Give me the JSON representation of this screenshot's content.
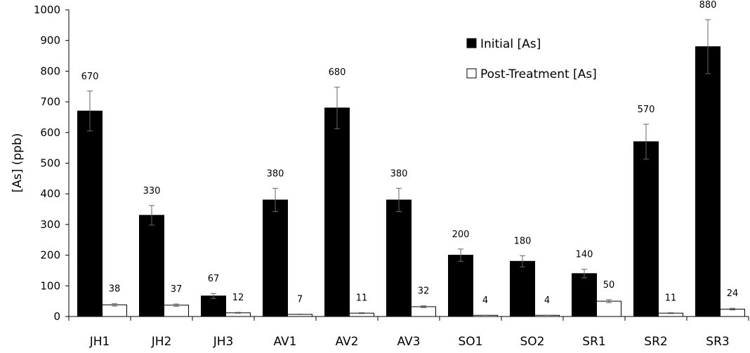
{
  "chart_data": {
    "type": "bar",
    "categories": [
      "JH1",
      "JH2",
      "JH3",
      "AV1",
      "AV2",
      "AV3",
      "SO1",
      "SO2",
      "SR1",
      "SR2",
      "SR3"
    ],
    "series": [
      {
        "name": "Initial [As]",
        "values": [
          670,
          330,
          67,
          380,
          680,
          380,
          200,
          180,
          140,
          570,
          880
        ],
        "errors": [
          65,
          32,
          8,
          38,
          68,
          38,
          20,
          18,
          14,
          57,
          88
        ],
        "labels": [
          "670",
          "330",
          "67",
          "380",
          "680",
          "380",
          "200",
          "180",
          "140",
          "570",
          "880"
        ],
        "color": "#000000"
      },
      {
        "name": "Post-Treatment [As]",
        "values": [
          38,
          37,
          12,
          7,
          11,
          32,
          4,
          4,
          50,
          11,
          24
        ],
        "errors": [
          4,
          4,
          1.5,
          1,
          1.5,
          3,
          0.5,
          0.5,
          5,
          1.5,
          3
        ],
        "labels": [
          "38",
          "37",
          "12",
          "7",
          "11",
          "32",
          "4",
          "4",
          "50",
          "11",
          "24"
        ],
        "color": "#ffffff"
      }
    ],
    "title": "",
    "xlabel": "",
    "ylabel": "[As] (ppb)",
    "ylim": [
      0,
      1000
    ],
    "yticks": [
      "0",
      "100",
      "200",
      "300",
      "400",
      "500",
      "600",
      "700",
      "800",
      "900",
      "1000"
    ],
    "grid": false,
    "legend_position": "top-right"
  }
}
